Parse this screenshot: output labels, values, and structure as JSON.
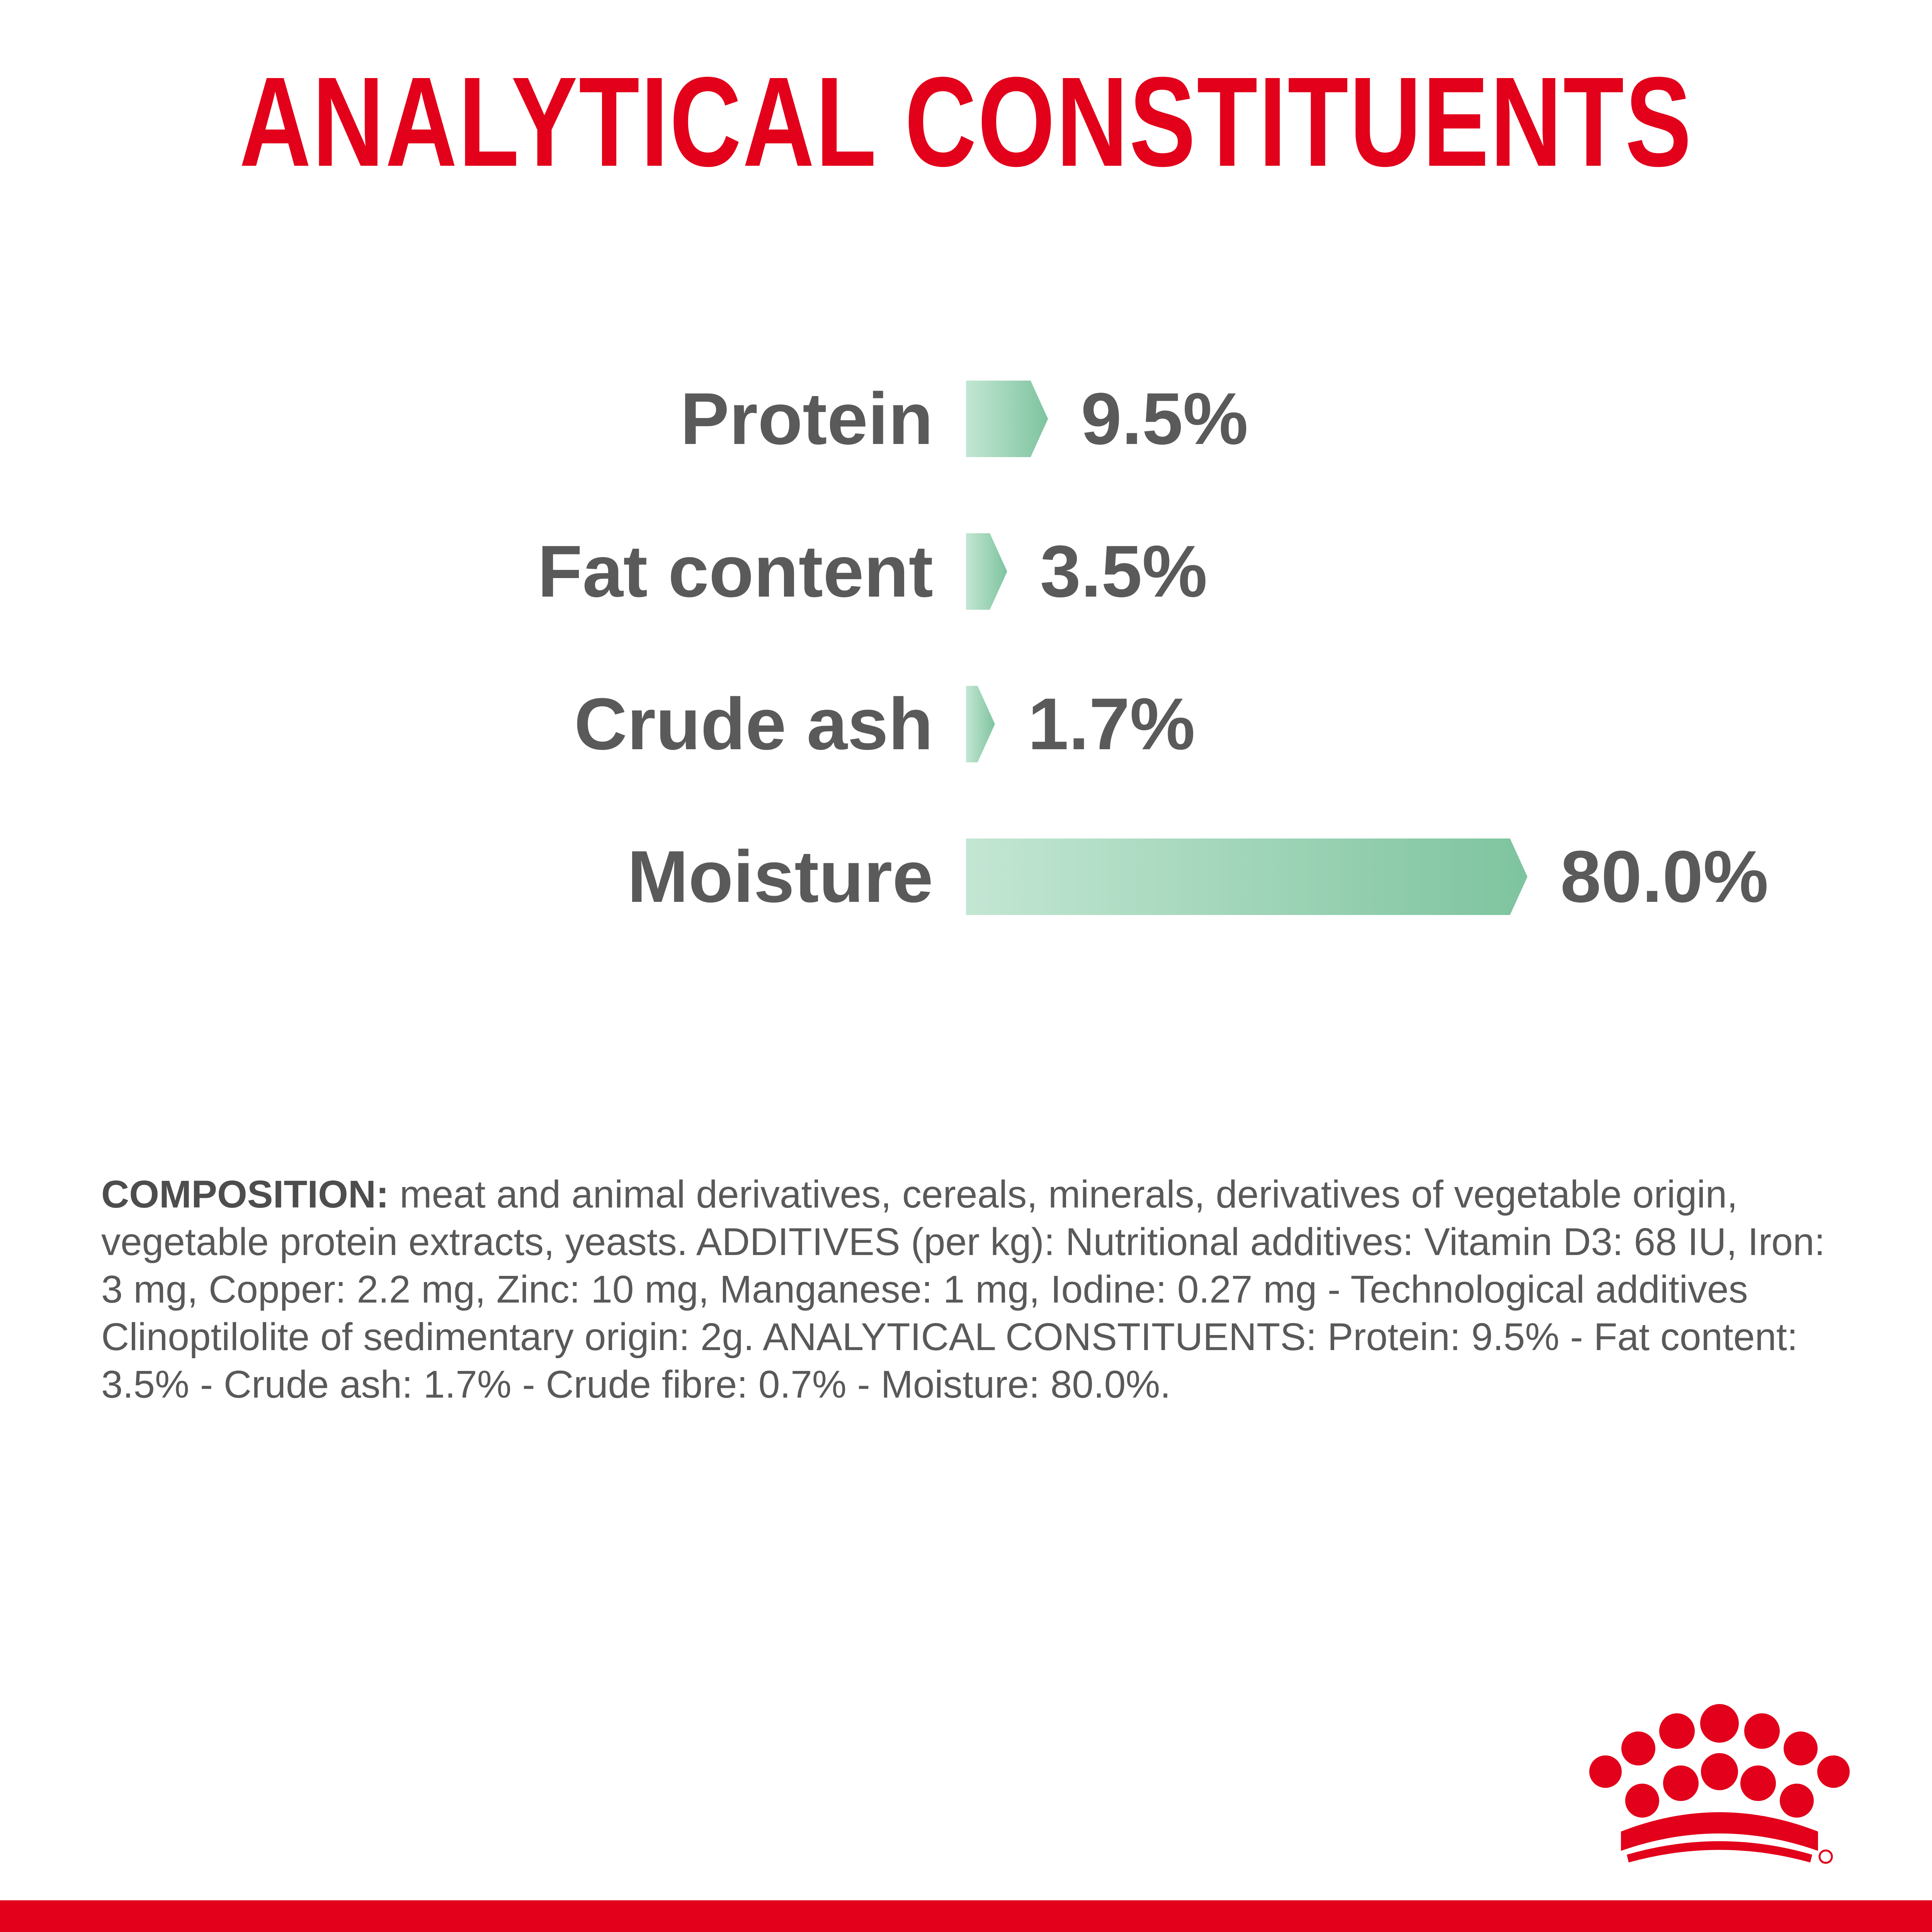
{
  "title": "ANALYTICAL CONSTITUENTS",
  "chart_data": {
    "type": "bar",
    "orientation": "horizontal",
    "categories": [
      "Protein",
      "Fat content",
      "Crude ash",
      "Moisture"
    ],
    "values": [
      9.5,
      3.5,
      1.7,
      80.0
    ],
    "value_labels": [
      "9.5%",
      "3.5%",
      "1.7%",
      "80.0%"
    ],
    "unit": "%",
    "grid": false,
    "legend": "none",
    "colors": {
      "bar_start": "#bfe3cf",
      "bar_end": "#7ec49f",
      "label": "#5a5a5a"
    }
  },
  "composition": {
    "label": "COMPOSITION:",
    "text": " meat and animal derivatives, cereals, minerals, derivatives of vegetable origin, vegetable protein extracts, yeasts. ADDITIVES (per kg): Nutritional additives: Vitamin D3: 68 IU, Iron: 3 mg, Copper: 2.2 mg, Zinc: 10 mg, Manganese: 1 mg, Iodine: 0.27 mg - Technological additives Clinoptilolite of sedimentary origin: 2g. ANALYTICAL CONSTITUENTS: Protein: 9.5% - Fat content: 3.5% - Crude ash: 1.7% - Crude fibre: 0.7% - Moisture: 80.0%."
  },
  "brand": {
    "accent": "#e2001a"
  }
}
